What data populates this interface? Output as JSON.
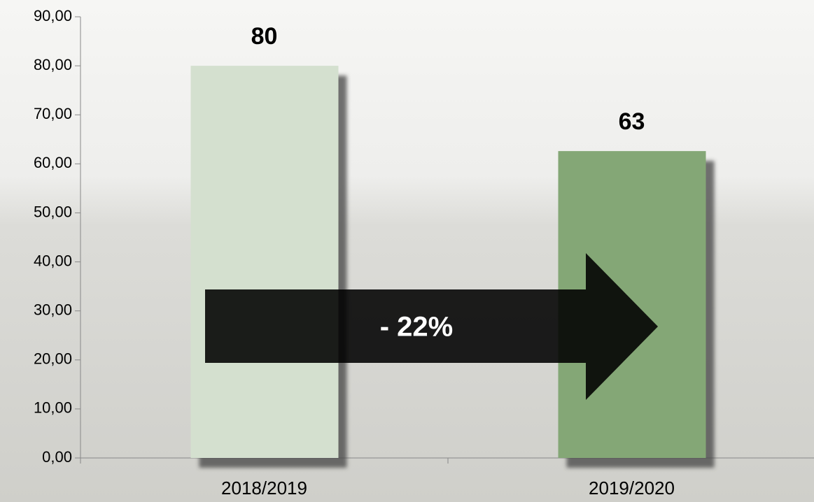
{
  "chart_data": {
    "type": "bar",
    "categories": [
      "2018/2019",
      "2019/2020"
    ],
    "values": [
      80,
      62.6
    ],
    "value_labels": [
      "80",
      "63"
    ],
    "colors": [
      "#d4e0cf",
      "#84a776"
    ],
    "ylim": [
      0,
      90
    ],
    "yticks": [
      {
        "value": 0,
        "label": "0,00"
      },
      {
        "value": 10,
        "label": "10,00"
      },
      {
        "value": 20,
        "label": "20,00"
      },
      {
        "value": 30,
        "label": "30,00"
      },
      {
        "value": 40,
        "label": "40,00"
      },
      {
        "value": 50,
        "label": "50,00"
      },
      {
        "value": 60,
        "label": "60,00"
      },
      {
        "value": 70,
        "label": "70,00"
      },
      {
        "value": 80,
        "label": "80,00"
      },
      {
        "value": 90,
        "label": "90,00"
      }
    ],
    "annotation": "- 22%"
  }
}
